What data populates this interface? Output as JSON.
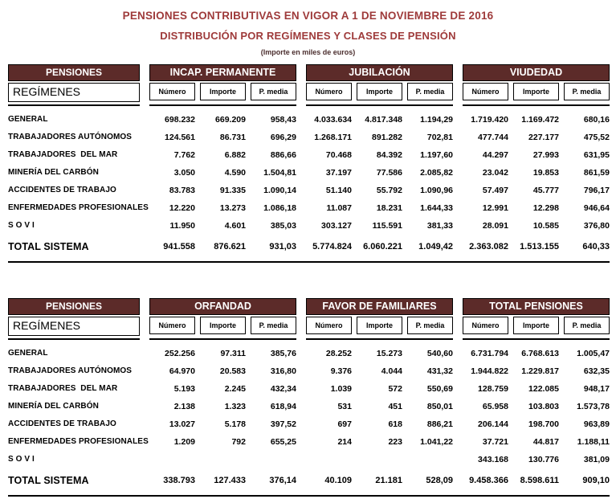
{
  "page": {
    "title": "PENSIONES CONTRIBUTIVAS EN VIGOR A 1 DE NOVIEMBRE DE 2016",
    "subtitle": "DISTRIBUCIÓN POR REGÍMENES Y CLASES DE PENSIÓN",
    "note": "(Importe en miles de euros)"
  },
  "colors": {
    "title_red": "#9E3A3A",
    "header_maroon": "#5C2B29",
    "border_black": "#000000"
  },
  "corner": {
    "top": "PENSIONES",
    "bottom": "REGÍMENES"
  },
  "subheaders": [
    "Número",
    "Importe",
    "P. media"
  ],
  "tables": [
    {
      "groups": [
        "INCAP. PERMANENTE",
        "JUBILACIÓN",
        "VIUDEDAD"
      ],
      "rows": [
        {
          "label": "GENERAL",
          "values": [
            [
              "698.232",
              "669.209",
              "958,43"
            ],
            [
              "4.033.634",
              "4.817.348",
              "1.194,29"
            ],
            [
              "1.719.420",
              "1.169.472",
              "680,16"
            ]
          ]
        },
        {
          "label": "TRABAJADORES AUTÓNOMOS",
          "values": [
            [
              "124.561",
              "86.731",
              "696,29"
            ],
            [
              "1.268.171",
              "891.282",
              "702,81"
            ],
            [
              "477.744",
              "227.177",
              "475,52"
            ]
          ]
        },
        {
          "label": "TRABAJADORES  DEL MAR",
          "values": [
            [
              "7.762",
              "6.882",
              "886,66"
            ],
            [
              "70.468",
              "84.392",
              "1.197,60"
            ],
            [
              "44.297",
              "27.993",
              "631,95"
            ]
          ]
        },
        {
          "label": "MINERÍA DEL CARBÓN",
          "values": [
            [
              "3.050",
              "4.590",
              "1.504,81"
            ],
            [
              "37.197",
              "77.586",
              "2.085,82"
            ],
            [
              "23.042",
              "19.853",
              "861,59"
            ]
          ]
        },
        {
          "label": "ACCIDENTES DE TRABAJO",
          "values": [
            [
              "83.783",
              "91.335",
              "1.090,14"
            ],
            [
              "51.140",
              "55.792",
              "1.090,96"
            ],
            [
              "57.497",
              "45.777",
              "796,17"
            ]
          ]
        },
        {
          "label": "ENFERMEDADES PROFESIONALES",
          "values": [
            [
              "12.220",
              "13.273",
              "1.086,18"
            ],
            [
              "11.087",
              "18.231",
              "1.644,33"
            ],
            [
              "12.991",
              "12.298",
              "946,64"
            ]
          ]
        },
        {
          "label": "S O V I",
          "values": [
            [
              "11.950",
              "4.601",
              "385,03"
            ],
            [
              "303.127",
              "115.591",
              "381,33"
            ],
            [
              "28.091",
              "10.585",
              "376,80"
            ]
          ]
        }
      ],
      "total": {
        "label": "TOTAL SISTEMA",
        "values": [
          [
            "941.558",
            "876.621",
            "931,03"
          ],
          [
            "5.774.824",
            "6.060.221",
            "1.049,42"
          ],
          [
            "2.363.082",
            "1.513.155",
            "640,33"
          ]
        ]
      }
    },
    {
      "groups": [
        "ORFANDAD",
        "FAVOR DE FAMILIARES",
        "TOTAL PENSIONES"
      ],
      "rows": [
        {
          "label": "GENERAL",
          "values": [
            [
              "252.256",
              "97.311",
              "385,76"
            ],
            [
              "28.252",
              "15.273",
              "540,60"
            ],
            [
              "6.731.794",
              "6.768.613",
              "1.005,47"
            ]
          ]
        },
        {
          "label": "TRABAJADORES AUTÓNOMOS",
          "values": [
            [
              "64.970",
              "20.583",
              "316,80"
            ],
            [
              "9.376",
              "4.044",
              "431,32"
            ],
            [
              "1.944.822",
              "1.229.817",
              "632,35"
            ]
          ]
        },
        {
          "label": "TRABAJADORES  DEL MAR",
          "values": [
            [
              "5.193",
              "2.245",
              "432,34"
            ],
            [
              "1.039",
              "572",
              "550,69"
            ],
            [
              "128.759",
              "122.085",
              "948,17"
            ]
          ]
        },
        {
          "label": "MINERÍA DEL CARBÓN",
          "values": [
            [
              "2.138",
              "1.323",
              "618,94"
            ],
            [
              "531",
              "451",
              "850,01"
            ],
            [
              "65.958",
              "103.803",
              "1.573,78"
            ]
          ]
        },
        {
          "label": "ACCIDENTES DE TRABAJO",
          "values": [
            [
              "13.027",
              "5.178",
              "397,52"
            ],
            [
              "697",
              "618",
              "886,21"
            ],
            [
              "206.144",
              "198.700",
              "963,89"
            ]
          ]
        },
        {
          "label": "ENFERMEDADES PROFESIONALES",
          "values": [
            [
              "1.209",
              "792",
              "655,25"
            ],
            [
              "214",
              "223",
              "1.041,22"
            ],
            [
              "37.721",
              "44.817",
              "1.188,11"
            ]
          ]
        },
        {
          "label": "S O V I",
          "values": [
            [
              "",
              "",
              ""
            ],
            [
              "",
              "",
              ""
            ],
            [
              "343.168",
              "130.776",
              "381,09"
            ]
          ]
        }
      ],
      "total": {
        "label": "TOTAL SISTEMA",
        "values": [
          [
            "338.793",
            "127.433",
            "376,14"
          ],
          [
            "40.109",
            "21.181",
            "528,09"
          ],
          [
            "9.458.366",
            "8.598.611",
            "909,10"
          ]
        ]
      }
    }
  ]
}
